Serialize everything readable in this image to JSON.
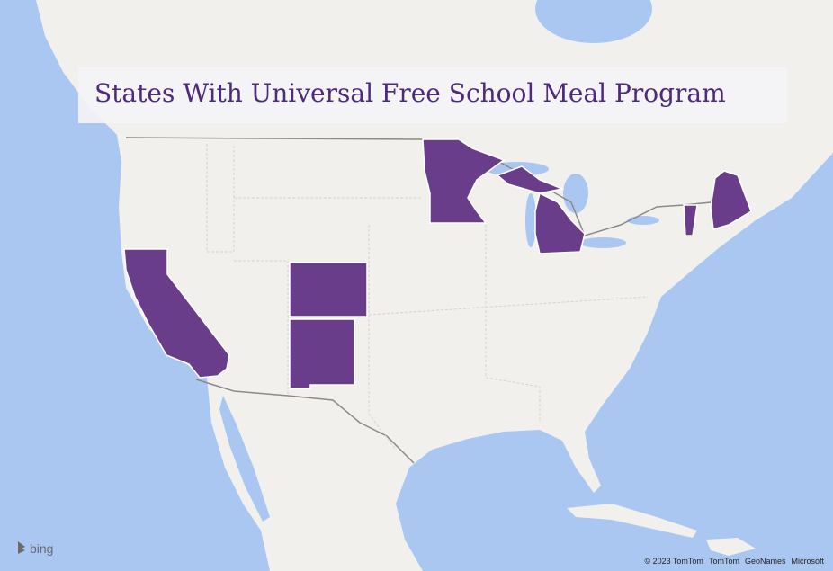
{
  "title": "States With Universal Free School Meal Program",
  "attribution": [
    "© 2023 TomTom",
    "TomTom",
    "GeoNames",
    "Microsoft"
  ],
  "logo": "bing"
}
